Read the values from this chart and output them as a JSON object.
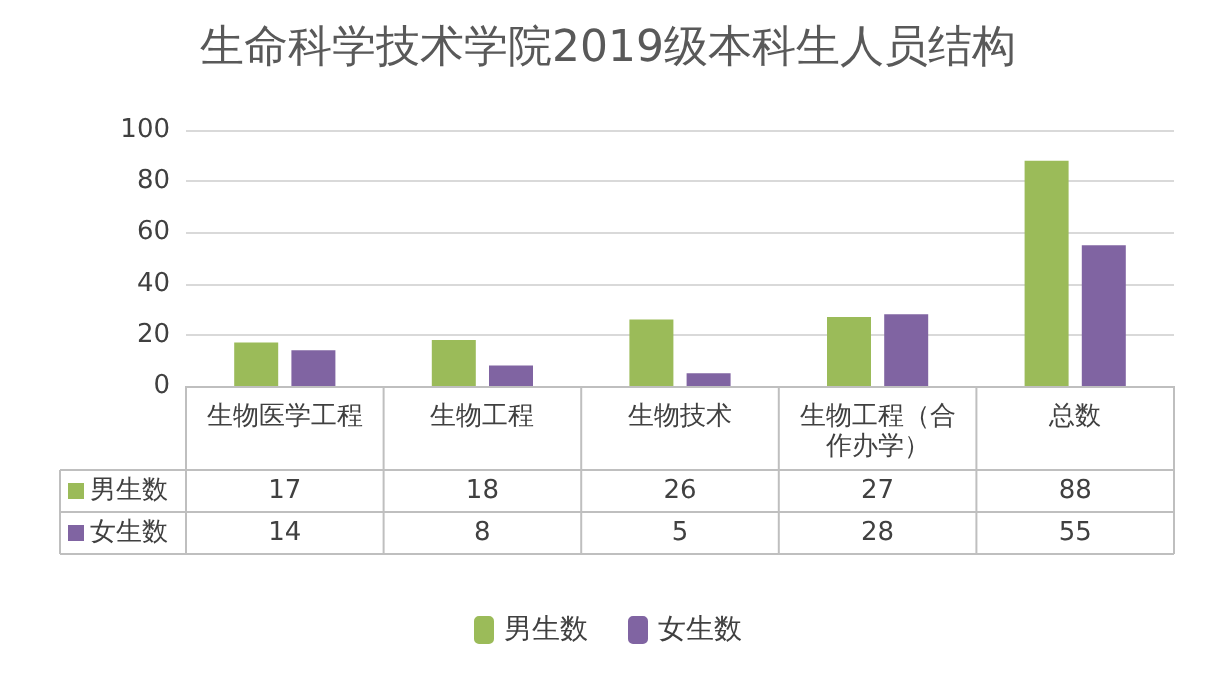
{
  "chart_data": {
    "type": "bar",
    "title": "生命科学技术学院2019级本科生人员结构",
    "categories": [
      "生物医学工程",
      "生物工程",
      "生物技术",
      "生物工程（合作办学）",
      "总数"
    ],
    "series": [
      {
        "name": "男生数",
        "color": "#9bbb59",
        "values": [
          17,
          18,
          26,
          27,
          88
        ]
      },
      {
        "name": "女生数",
        "color": "#8064a2",
        "values": [
          14,
          8,
          5,
          28,
          55
        ]
      }
    ],
    "ylim": [
      0,
      100
    ],
    "yticks": [
      0,
      20,
      40,
      60,
      80,
      100
    ],
    "grid": "y",
    "legend": "bottom",
    "data_labels": true
  }
}
